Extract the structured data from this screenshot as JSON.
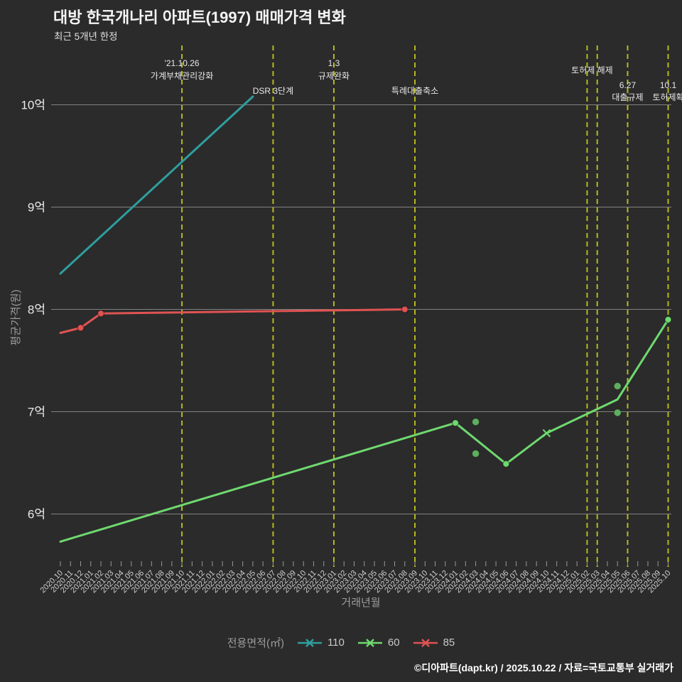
{
  "header": {
    "title": "대방 한국개나리 아파트(1997) 매매가격 변화",
    "subtitle": "최근 5개년 한정"
  },
  "footer": {
    "credit": "©디아파트(dapt.kr) / 2025.10.22 / 자료=국토교통부 실거래가"
  },
  "legend": {
    "title": "전용면적(㎡)",
    "items": [
      {
        "label": "110",
        "color": "#2f9e9e"
      },
      {
        "label": "60",
        "color": "#6fd96f"
      },
      {
        "label": "85",
        "color": "#e05353"
      }
    ]
  },
  "chart_data": {
    "type": "line",
    "title": "대방 한국개나리 아파트(1997) 매매가격 변화",
    "subtitle": "최근 5개년 한정",
    "xlabel": "거래년월",
    "ylabel": "평균가격(원)",
    "unit": "억원",
    "ylim": [
      5.5,
      10.6
    ],
    "grid": true,
    "legend_position": "bottom",
    "colors": {
      "background": "#2b2b2b",
      "grid": "#828282",
      "event_line": "#b5ba1e",
      "scatter": "#5fae5f",
      "tick": "#9a9a9a",
      "tick_label": "#cfcfcf",
      "y_tick_label": "#ececec",
      "axis_title": "#9d9d9d",
      "annotation_text": "#e8e8e8"
    },
    "y_ticks": [
      {
        "label": "6억",
        "value": 6
      },
      {
        "label": "7억",
        "value": 7
      },
      {
        "label": "8억",
        "value": 8
      },
      {
        "label": "9억",
        "value": 9
      },
      {
        "label": "10억",
        "value": 10
      }
    ],
    "x_categories": [
      "2020.10",
      "2020.11",
      "2020.12",
      "2021.01",
      "2021.02",
      "2021.03",
      "2021.04",
      "2021.05",
      "2021.06",
      "2021.07",
      "2021.08",
      "2021.09",
      "2021.10",
      "2021.11",
      "2021.12",
      "2022.01",
      "2022.02",
      "2022.03",
      "2022.04",
      "2022.05",
      "2022.06",
      "2022.07",
      "2022.08",
      "2022.09",
      "2022.10",
      "2022.11",
      "2022.12",
      "2023.01",
      "2023.02",
      "2023.03",
      "2023.04",
      "2023.05",
      "2023.06",
      "2023.07",
      "2023.08",
      "2023.09",
      "2023.10",
      "2023.11",
      "2023.12",
      "2024.01",
      "2024.02",
      "2024.03",
      "2024.04",
      "2024.05",
      "2024.06",
      "2024.07",
      "2024.08",
      "2024.09",
      "2024.10",
      "2024.11",
      "2024.12",
      "2025.01",
      "2025.02",
      "2025.03",
      "2025.04",
      "2025.05",
      "2025.06",
      "2025.07",
      "2025.08",
      "2025.09",
      "2025.10"
    ],
    "series": [
      {
        "name": "110",
        "color": "#2f9e9e",
        "points": [
          {
            "month": "2020.10",
            "value": 8.35
          },
          {
            "month": "2022.05",
            "value": 10.08
          }
        ]
      },
      {
        "name": "85",
        "color": "#e05353",
        "points": [
          {
            "month": "2020.10",
            "value": 7.77
          },
          {
            "month": "2020.12",
            "value": 7.82,
            "marker": "dot"
          },
          {
            "month": "2021.02",
            "value": 7.96,
            "marker": "dot"
          },
          {
            "month": "2023.08",
            "value": 8.0,
            "marker": "dot"
          }
        ]
      },
      {
        "name": "60",
        "color": "#6fd96f",
        "points": [
          {
            "month": "2020.10",
            "value": 5.73
          },
          {
            "month": "2024.01",
            "value": 6.89,
            "marker": "dot"
          },
          {
            "month": "2024.06",
            "value": 6.49,
            "marker": "dot"
          },
          {
            "month": "2024.10",
            "value": 6.79,
            "marker": "x"
          },
          {
            "month": "2025.05",
            "value": 7.12
          },
          {
            "month": "2025.10",
            "value": 7.9,
            "marker": "dot"
          }
        ]
      }
    ],
    "scatter": [
      {
        "series": "60",
        "month": "2024.03",
        "value": 6.9
      },
      {
        "series": "60",
        "month": "2024.03",
        "value": 6.59
      },
      {
        "series": "60",
        "month": "2025.05",
        "value": 7.25
      },
      {
        "series": "60",
        "month": "2025.05",
        "value": 6.99
      }
    ],
    "event_lines": [
      {
        "month": "2021.10",
        "labels": [
          {
            "text": "'21.10.26",
            "y": 93
          },
          {
            "text": "가계부채관리강화",
            "y": 111
          }
        ]
      },
      {
        "month": "2022.07",
        "labels": [
          {
            "text": "DSR 3단계",
            "y": 132
          }
        ]
      },
      {
        "month": "2023.01",
        "labels": [
          {
            "text": "1.3",
            "y": 93
          },
          {
            "text": "규제완화",
            "y": 111
          }
        ]
      },
      {
        "month": "2023.09",
        "labels": [
          {
            "text": "특례대출축소",
            "y": 132
          }
        ]
      },
      {
        "month": "2025.02",
        "labels": [
          {
            "text": "토허제 해제",
            "y": 103,
            "dx": 7
          }
        ]
      },
      {
        "month": "2025.03",
        "labels": []
      },
      {
        "month": "2025.06",
        "labels": [
          {
            "text": "6.27",
            "y": 124
          },
          {
            "text": "대출규제",
            "y": 141
          }
        ]
      },
      {
        "month": "2025.10",
        "labels": [
          {
            "text": "10.1",
            "y": 124
          },
          {
            "text": "토허제확",
            "y": 141
          }
        ]
      }
    ]
  }
}
